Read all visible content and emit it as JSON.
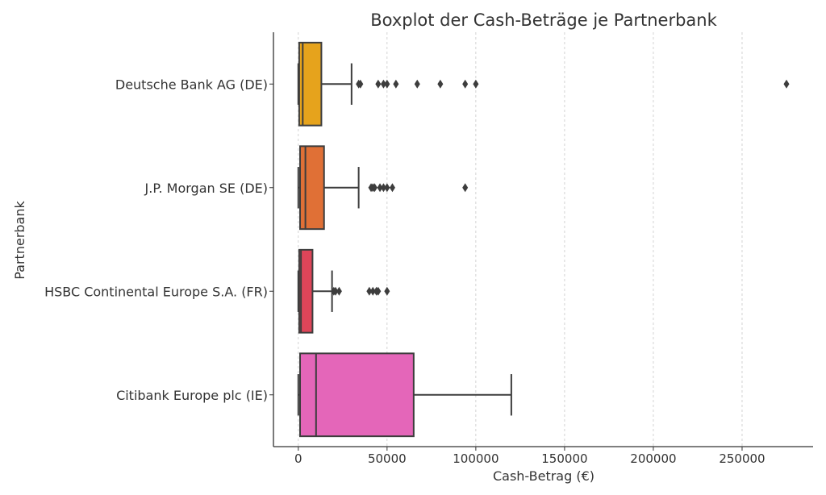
{
  "chart_data": {
    "type": "boxplot",
    "orientation": "horizontal",
    "title": "Boxplot der Cash-Beträge je Partnerbank",
    "xlabel": "Cash-Betrag (€)",
    "ylabel": "Partnerbank",
    "xlim": [
      -14000,
      290000
    ],
    "xticks": [
      0,
      50000,
      100000,
      150000,
      200000,
      250000
    ],
    "xtick_labels": [
      "0",
      "50000",
      "100000",
      "150000",
      "200000",
      "250000"
    ],
    "grid": {
      "x": true,
      "y": false,
      "style": "dashed"
    },
    "categories": [
      "Deutsche Bank AG (DE)",
      "J.P. Morgan SE (DE)",
      "HSBC Continental Europe S.A. (FR)",
      "Citibank Europe plc (IE)"
    ],
    "series": [
      {
        "min": 0,
        "q1": 500,
        "median": 2500,
        "q3": 13000,
        "max": 30000,
        "color": "#E6A31C",
        "outliers": [
          34000,
          35000,
          45000,
          48000,
          50000,
          55000,
          67000,
          80000,
          94000,
          100000,
          275000
        ]
      },
      {
        "min": 0,
        "q1": 1000,
        "median": 4000,
        "q3": 14500,
        "max": 34000,
        "color": "#E07036",
        "outliers": [
          41000,
          42000,
          43000,
          46000,
          48000,
          50000,
          53000,
          94000
        ]
      },
      {
        "min": 0,
        "q1": 500,
        "median": 1500,
        "q3": 8000,
        "max": 19000,
        "color": "#DE4559",
        "outliers": [
          20000,
          21000,
          23000,
          40000,
          42000,
          44000,
          45000,
          50000
        ]
      },
      {
        "min": 0,
        "q1": 1000,
        "median": 10000,
        "q3": 65000,
        "max": 120000,
        "color": "#E466B9",
        "outliers": []
      }
    ]
  }
}
